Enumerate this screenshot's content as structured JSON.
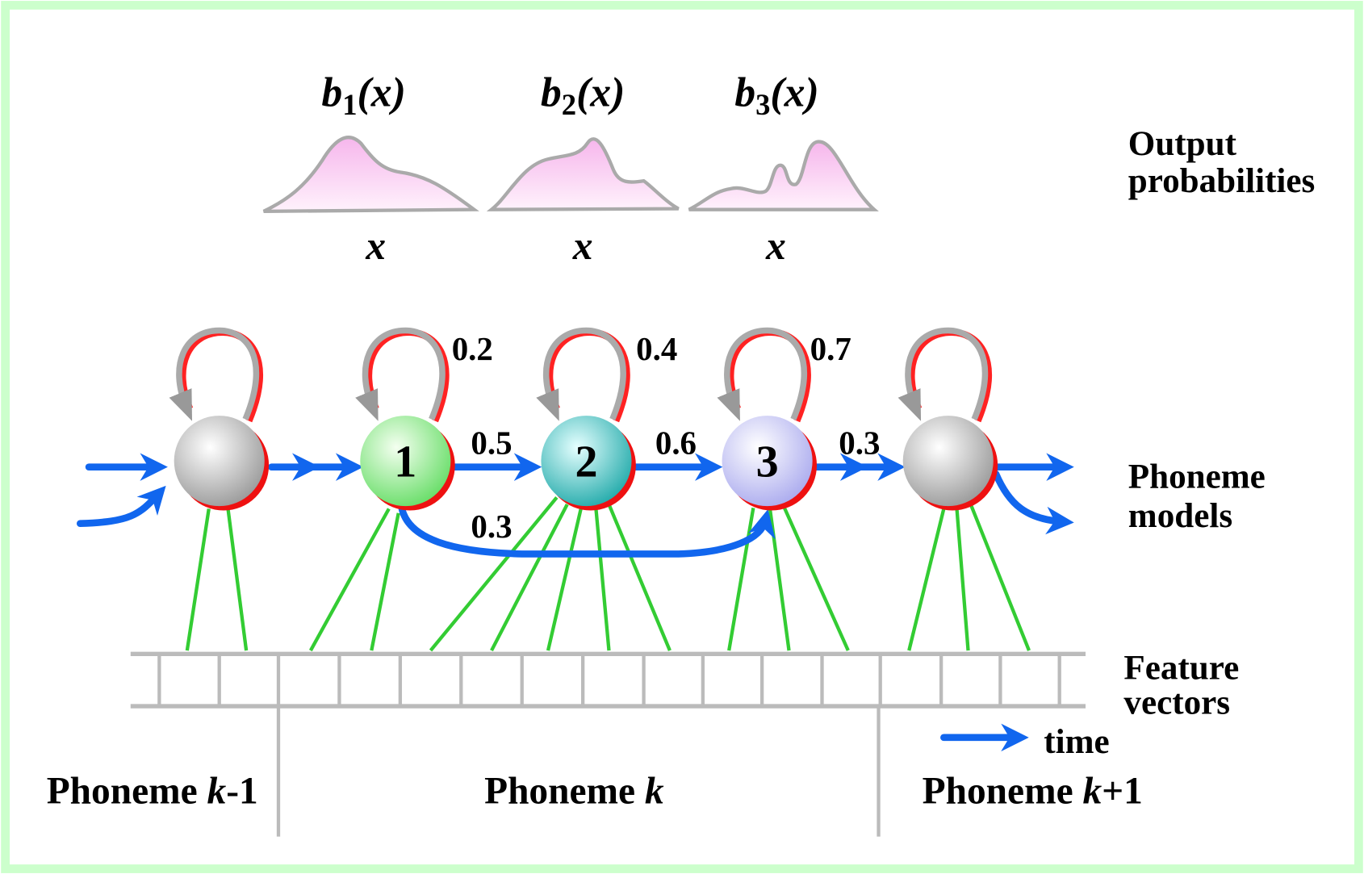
{
  "output_probabilities": {
    "label": [
      "Output",
      "probabilities"
    ],
    "densities": [
      {
        "function": "b",
        "index": "1",
        "argument": "(x)",
        "axis": "x"
      },
      {
        "function": "b",
        "index": "2",
        "argument": "(x)",
        "axis": "x"
      },
      {
        "function": "b",
        "index": "3",
        "argument": "(x)",
        "axis": "x"
      }
    ]
  },
  "phoneme_models": {
    "label": [
      "Phoneme",
      "models"
    ],
    "states": [
      "1",
      "2",
      "3"
    ],
    "self_loop_probabilities": [
      0.2,
      0.4,
      0.7
    ],
    "transition_probabilities": [
      0.5,
      0.6,
      0.3
    ],
    "skip_probability": 0.3
  },
  "feature_vectors": {
    "label": [
      "Feature",
      "vectors"
    ],
    "time_label": "time"
  },
  "phonemes": [
    {
      "name": "Phoneme",
      "variable": "k",
      "suffix": "-1"
    },
    {
      "name": "Phoneme",
      "variable": "k"
    },
    {
      "name": "Phoneme",
      "variable": "k",
      "suffix": "+1"
    }
  ]
}
